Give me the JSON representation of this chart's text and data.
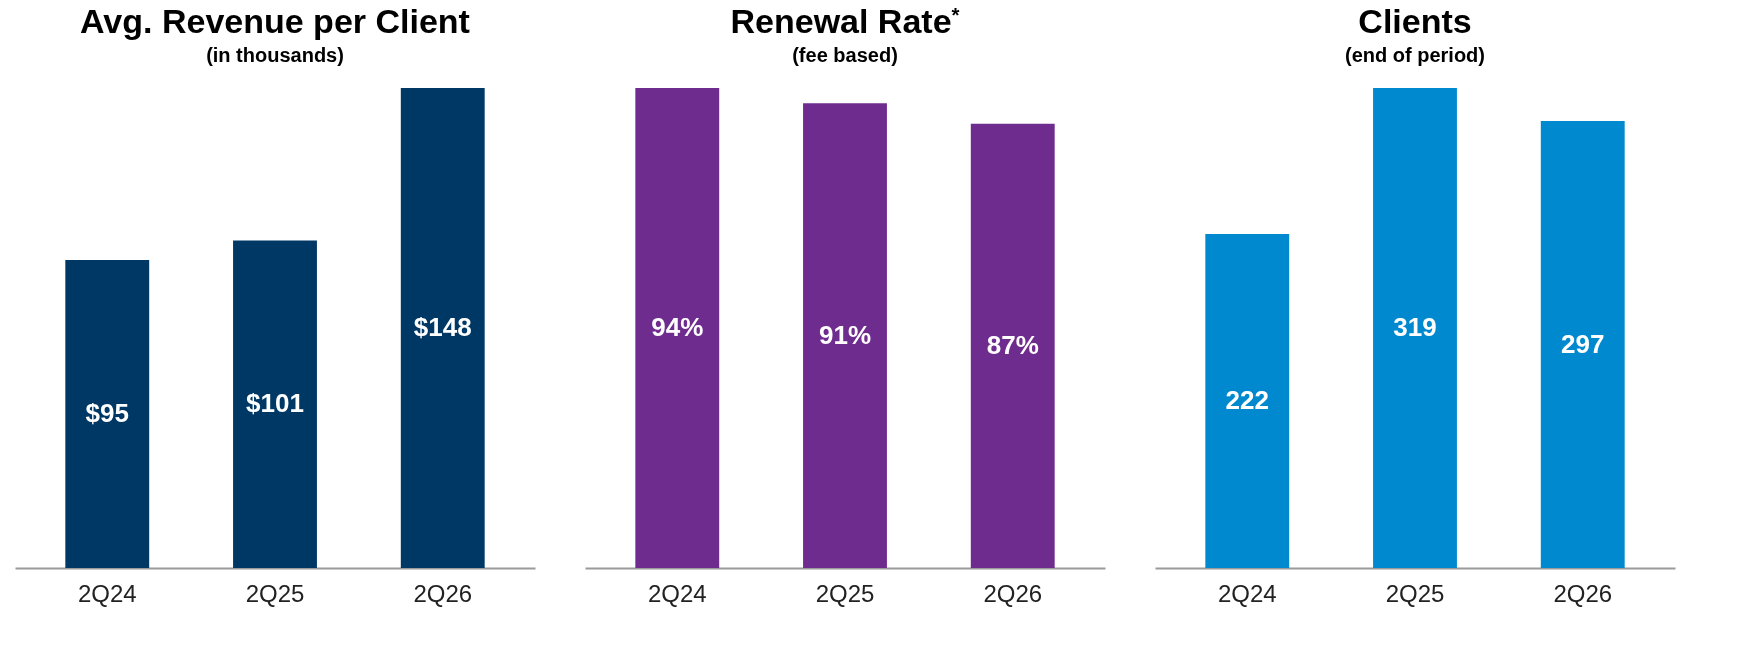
{
  "chart_data": [
    {
      "type": "bar",
      "title": "Avg. Revenue per Client",
      "subtitle": "(in thousands)",
      "categories": [
        "2Q24",
        "2Q25",
        "2Q26"
      ],
      "values": [
        95,
        101,
        148
      ],
      "value_labels": [
        "$95",
        "$101",
        "$148"
      ],
      "color": "#003865"
    },
    {
      "type": "bar",
      "title": "Renewal Rate$^{*}$",
      "subtitle": "(fee based)",
      "categories": [
        "2Q24",
        "2Q25",
        "2Q26"
      ],
      "values": [
        94,
        91,
        87
      ],
      "value_labels": [
        "94%",
        "91%",
        "87%"
      ],
      "color": "#6f2c8f"
    },
    {
      "type": "bar",
      "title": "Clients",
      "subtitle": "(end of period)",
      "categories": [
        "2Q24",
        "2Q25",
        "2Q26"
      ],
      "values": [
        222,
        319,
        297
      ],
      "data_labels": true,
      "color": "#0089cf"
    }
  ]
}
